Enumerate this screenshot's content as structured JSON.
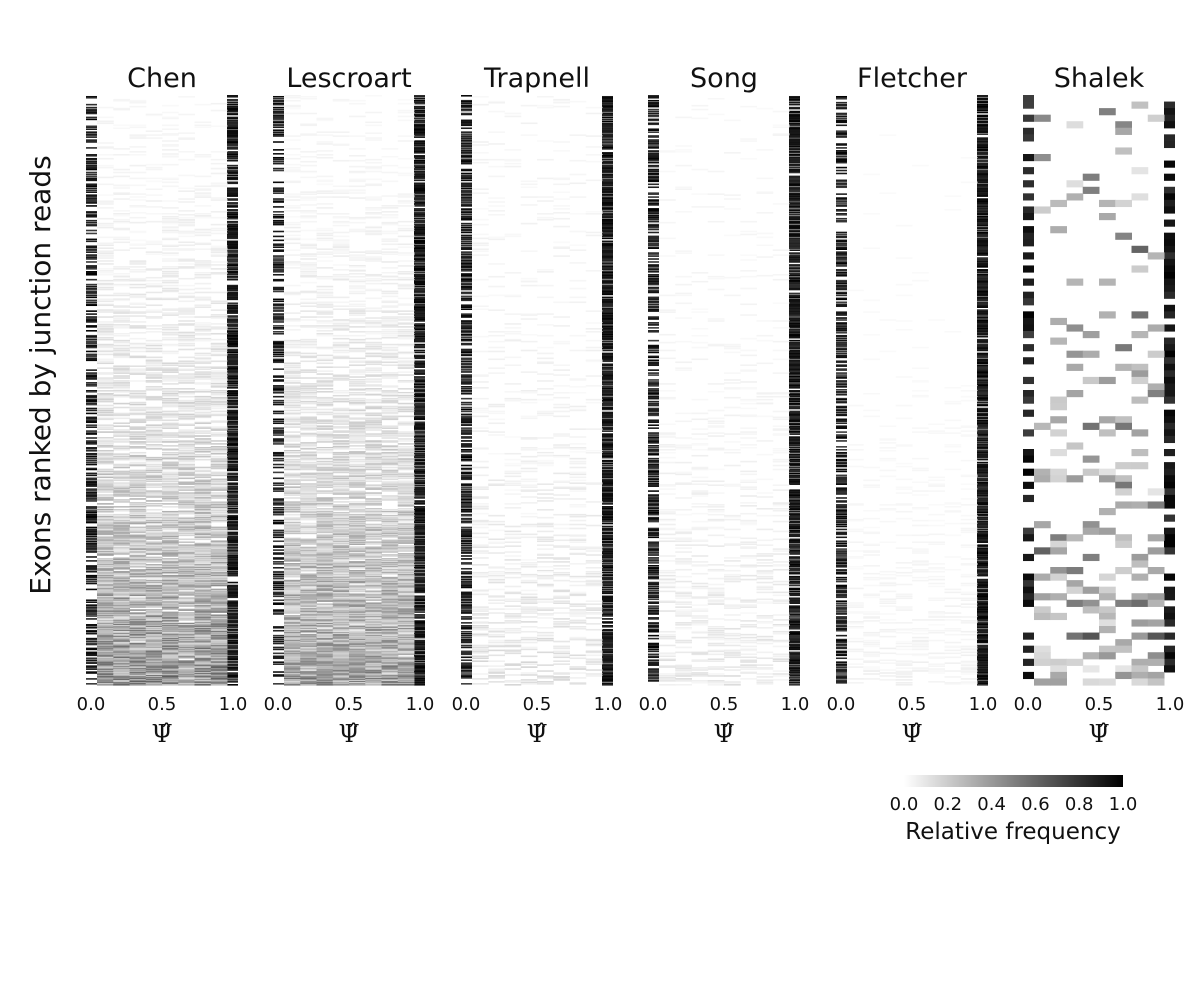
{
  "figure": {
    "ylabel": "Exons ranked by junction reads"
  },
  "chart_data": {
    "type": "heatmap",
    "ylabel": "Exons ranked by junction reads",
    "xlabel": "Ψ̂",
    "xlim": [
      0.0,
      1.0
    ],
    "xticks": [
      0.0,
      0.5,
      1.0
    ],
    "xtick_labels": [
      "0.0",
      "0.5",
      "1.0"
    ],
    "grid": false,
    "panels": [
      {
        "name": "Chen",
        "rows": 600,
        "bins": 10,
        "pattern": "dense-bottom",
        "low_end_density": 0.45,
        "high_end_density": 0.75,
        "middle_intensity": 0.55
      },
      {
        "name": "Lescroart",
        "rows": 600,
        "bins": 10,
        "pattern": "dense-bottom",
        "low_end_density": 0.4,
        "high_end_density": 0.8,
        "middle_intensity": 0.5
      },
      {
        "name": "Trapnell",
        "rows": 600,
        "bins": 10,
        "pattern": "sparse",
        "low_end_density": 0.55,
        "high_end_density": 0.8,
        "middle_intensity": 0.15
      },
      {
        "name": "Song",
        "rows": 600,
        "bins": 10,
        "pattern": "sparse",
        "low_end_density": 0.55,
        "high_end_density": 0.8,
        "middle_intensity": 0.12
      },
      {
        "name": "Fletcher",
        "rows": 600,
        "bins": 10,
        "pattern": "sparse",
        "low_end_density": 0.55,
        "high_end_density": 0.85,
        "middle_intensity": 0.06
      },
      {
        "name": "Shalek",
        "rows": 90,
        "bins": 10,
        "pattern": "blocky",
        "low_end_density": 0.55,
        "high_end_density": 0.7,
        "middle_intensity": 0.6
      }
    ],
    "colorbar": {
      "label": "Relative frequency",
      "range": [
        0.0,
        1.0
      ],
      "ticks": [
        "0.0",
        "0.2",
        "0.4",
        "0.6",
        "0.8",
        "1.0"
      ],
      "colormap": "white-to-black"
    }
  }
}
